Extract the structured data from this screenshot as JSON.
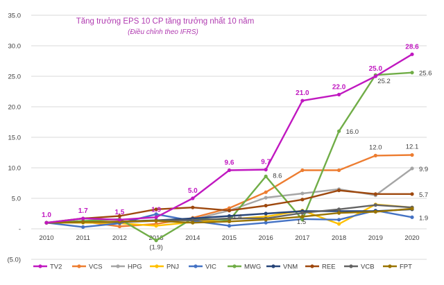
{
  "chart_data": {
    "type": "line",
    "title": "Tăng trưởng EPS 10 CP tăng trưởng nhất 10 năm",
    "subtitle": "(Điều chỉnh theo IFRS)",
    "categories": [
      "2010",
      "2011",
      "2012",
      "2013",
      "2014",
      "2015",
      "2016",
      "2017",
      "2018",
      "2019",
      "2020"
    ],
    "y_ticks": [
      "35.0",
      "30.0",
      "25.0",
      "20.0",
      "15.0",
      "10.0",
      "5.0",
      "-",
      "(5.0)"
    ],
    "ylim": [
      -5,
      35
    ],
    "grid": true,
    "legend_position": "bottom",
    "series": [
      {
        "name": "TV2",
        "color": "#c018c0",
        "values": [
          1.0,
          1.7,
          1.5,
          1.9,
          5.0,
          9.6,
          9.7,
          21.0,
          22.0,
          25.0,
          28.6
        ],
        "labels": [
          "1.0",
          "1.7",
          "1.5",
          "1.9",
          "5.0",
          "9.6",
          "9.7",
          "21.0",
          "22.0",
          "25.0",
          "28.6"
        ]
      },
      {
        "name": "VCS",
        "color": "#ed7d31",
        "values": [
          1.0,
          1.2,
          0.4,
          0.8,
          1.8,
          3.4,
          6.0,
          9.6,
          9.6,
          12.0,
          12.1
        ],
        "labels": {
          "9": "12.0",
          "10": "12.1"
        }
      },
      {
        "name": "HPG",
        "color": "#a5a5a5",
        "values": [
          1.0,
          1.0,
          1.0,
          1.3,
          1.5,
          3.0,
          5.1,
          5.8,
          6.5,
          5.5,
          9.9
        ],
        "labels": {
          "10": "9.9"
        }
      },
      {
        "name": "PNJ",
        "color": "#ffc000",
        "values": [
          1.0,
          1.0,
          0.9,
          0.5,
          1.1,
          1.6,
          2.0,
          3.0,
          0.8,
          4.0,
          3.5
        ],
        "labels": {}
      },
      {
        "name": "VIC",
        "color": "#4472c4",
        "values": [
          1.0,
          0.3,
          0.9,
          2.4,
          1.3,
          0.5,
          1.0,
          1.6,
          1.5,
          3.0,
          1.9
        ],
        "labels": {
          "10": "1.9"
        }
      },
      {
        "name": "MWG",
        "color": "#70ad47",
        "values": [
          1.0,
          1.3,
          1.6,
          -1.9,
          1.7,
          1.4,
          8.6,
          1.5,
          16.0,
          25.2,
          25.6
        ],
        "labels": {
          "3": "(1.9)",
          "5": "1.4",
          "6": "8.6",
          "7": "1.5",
          "8": "16.0",
          "9": "25.2",
          "10": "25.6"
        }
      },
      {
        "name": "VNM",
        "color": "#264478",
        "values": [
          1.0,
          1.1,
          1.2,
          1.4,
          1.7,
          2.1,
          2.5,
          2.9,
          2.9,
          2.9,
          3.2
        ],
        "labels": {}
      },
      {
        "name": "REE",
        "color": "#9e480e",
        "values": [
          1.0,
          1.7,
          2.1,
          3.2,
          3.5,
          3.0,
          3.8,
          4.8,
          6.3,
          5.7,
          5.7
        ],
        "labels": {
          "10": "5.7"
        }
      },
      {
        "name": "VCB",
        "color": "#636363",
        "values": [
          1.0,
          1.1,
          1.1,
          1.4,
          1.4,
          1.7,
          1.7,
          2.6,
          3.2,
          3.9,
          3.5
        ],
        "labels": {}
      },
      {
        "name": "FPT",
        "color": "#997300",
        "values": [
          1.0,
          1.1,
          1.2,
          1.3,
          1.0,
          1.2,
          1.5,
          2.0,
          2.6,
          2.8,
          3.3
        ],
        "labels": {}
      }
    ]
  }
}
